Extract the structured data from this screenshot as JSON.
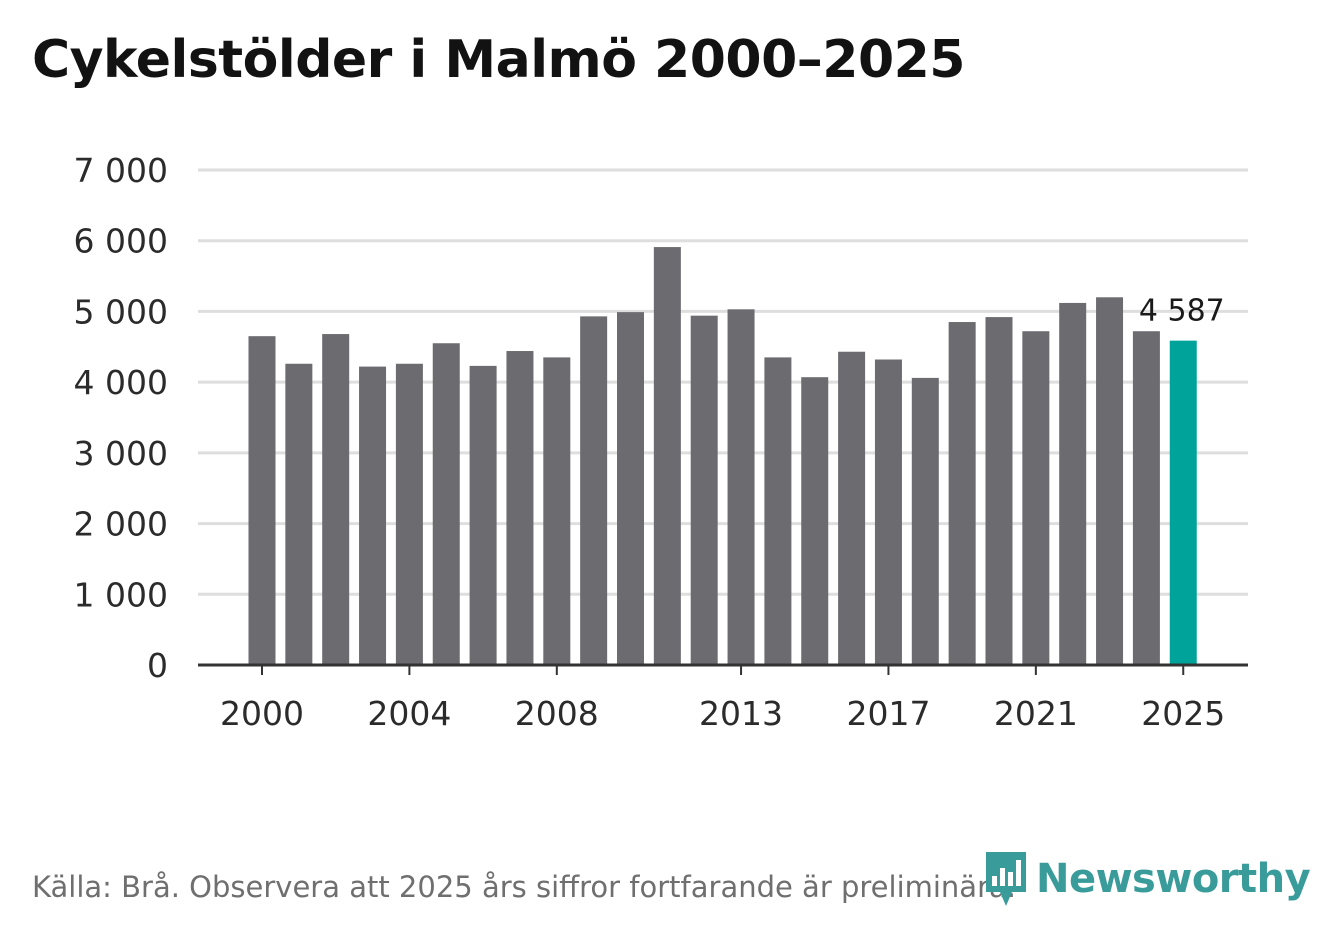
{
  "title": "Cykelstölder i Malmö 2000–2025",
  "source": "Källa: Brå. Observera att 2025 års siffror fortfarande är preliminära.",
  "logo": {
    "text": "Newsworthy",
    "icon": "newsworthy-logo-icon"
  },
  "colors": {
    "bar": "#6b6b70",
    "highlight": "#00a39a",
    "grid": "#dedede",
    "axis": "#333333",
    "logo": "#3a9c9a"
  },
  "chart_data": {
    "type": "bar",
    "title": "Cykelstölder i Malmö 2000–2025",
    "xlabel": "",
    "ylabel": "",
    "ylim": [
      0,
      7000
    ],
    "yticks": [
      0,
      1000,
      2000,
      3000,
      4000,
      5000,
      6000,
      7000
    ],
    "ytick_labels": [
      "0",
      "1 000",
      "2 000",
      "3 000",
      "4 000",
      "5 000",
      "6 000",
      "7 000"
    ],
    "xtick_labels": [
      "2000",
      "2004",
      "2008",
      "2013",
      "2017",
      "2021",
      "2025"
    ],
    "grid": true,
    "highlight_index": 25,
    "data_labels": [
      {
        "index": 25,
        "text": "4 587"
      }
    ],
    "categories": [
      "2000",
      "2001",
      "2002",
      "2003",
      "2004",
      "2005",
      "2006",
      "2007",
      "2008",
      "2009",
      "2010",
      "2011",
      "2012",
      "2013",
      "2014",
      "2015",
      "2016",
      "2017",
      "2018",
      "2019",
      "2020",
      "2021",
      "2022",
      "2023",
      "2024",
      "2025"
    ],
    "values": [
      4650,
      4260,
      4680,
      4220,
      4260,
      4550,
      4230,
      4440,
      4350,
      4930,
      4990,
      5910,
      4940,
      5030,
      4350,
      4070,
      4430,
      4320,
      4060,
      4850,
      4920,
      4720,
      5120,
      5200,
      4720,
      4587
    ]
  }
}
